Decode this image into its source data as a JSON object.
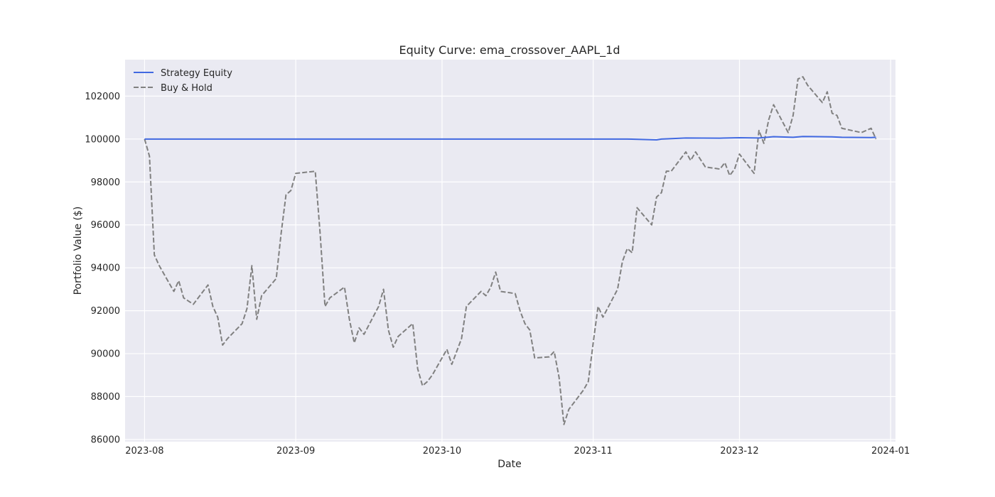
{
  "chart_data": {
    "type": "line",
    "title": "Equity Curve: ema_crossover_AAPL_1d",
    "xlabel": "Date",
    "ylabel": "Portfolio Value ($)",
    "x_ticks": [
      "2023-08",
      "2023-09",
      "2023-10",
      "2023-11",
      "2023-12",
      "2024-01"
    ],
    "y_ticks": [
      "86000",
      "88000",
      "90000",
      "92000",
      "94000",
      "96000",
      "98000",
      "100000",
      "102000"
    ],
    "xlim": [
      "2023-07-28",
      "2024-01-02"
    ],
    "ylim": [
      85900,
      103700
    ],
    "grid": true,
    "legend_position": "top-left",
    "series": [
      {
        "name": "Strategy Equity",
        "color": "#4169e1",
        "style": "solid",
        "points": [
          [
            "2023-08-01",
            100000
          ],
          [
            "2023-11-08",
            100000
          ],
          [
            "2023-11-14",
            99960
          ],
          [
            "2023-11-15",
            100000
          ],
          [
            "2023-11-20",
            100050
          ],
          [
            "2023-11-27",
            100040
          ],
          [
            "2023-12-01",
            100060
          ],
          [
            "2023-12-05",
            100050
          ],
          [
            "2023-12-08",
            100110
          ],
          [
            "2023-12-12",
            100080
          ],
          [
            "2023-12-14",
            100120
          ],
          [
            "2023-12-20",
            100100
          ],
          [
            "2023-12-22",
            100080
          ],
          [
            "2023-12-28",
            100070
          ],
          [
            "2023-12-29",
            100080
          ]
        ]
      },
      {
        "name": "Buy & Hold",
        "color": "#808080",
        "style": "dashed",
        "points": [
          [
            "2023-08-01",
            100000
          ],
          [
            "2023-08-02",
            99200
          ],
          [
            "2023-08-03",
            94600
          ],
          [
            "2023-08-04",
            94100
          ],
          [
            "2023-08-07",
            92900
          ],
          [
            "2023-08-08",
            93400
          ],
          [
            "2023-08-09",
            92600
          ],
          [
            "2023-08-10",
            92450
          ],
          [
            "2023-08-11",
            92300
          ],
          [
            "2023-08-14",
            93200
          ],
          [
            "2023-08-15",
            92200
          ],
          [
            "2023-08-16",
            91700
          ],
          [
            "2023-08-17",
            90400
          ],
          [
            "2023-08-18",
            90700
          ],
          [
            "2023-08-21",
            91400
          ],
          [
            "2023-08-22",
            92100
          ],
          [
            "2023-08-23",
            94100
          ],
          [
            "2023-08-24",
            91600
          ],
          [
            "2023-08-25",
            92700
          ],
          [
            "2023-08-28",
            93500
          ],
          [
            "2023-08-29",
            95600
          ],
          [
            "2023-08-30",
            97400
          ],
          [
            "2023-08-31",
            97600
          ],
          [
            "2023-09-01",
            98400
          ],
          [
            "2023-09-05",
            98500
          ],
          [
            "2023-09-06",
            95600
          ],
          [
            "2023-09-07",
            92200
          ],
          [
            "2023-09-08",
            92600
          ],
          [
            "2023-09-11",
            93100
          ],
          [
            "2023-09-12",
            91600
          ],
          [
            "2023-09-13",
            90500
          ],
          [
            "2023-09-14",
            91200
          ],
          [
            "2023-09-15",
            90900
          ],
          [
            "2023-09-18",
            92200
          ],
          [
            "2023-09-19",
            93000
          ],
          [
            "2023-09-20",
            91100
          ],
          [
            "2023-09-21",
            90300
          ],
          [
            "2023-09-22",
            90800
          ],
          [
            "2023-09-25",
            91400
          ],
          [
            "2023-09-26",
            89300
          ],
          [
            "2023-09-27",
            88500
          ],
          [
            "2023-09-28",
            88700
          ],
          [
            "2023-09-29",
            89000
          ],
          [
            "2023-10-02",
            90200
          ],
          [
            "2023-10-03",
            89500
          ],
          [
            "2023-10-04",
            90100
          ],
          [
            "2023-10-05",
            90700
          ],
          [
            "2023-10-06",
            92200
          ],
          [
            "2023-10-09",
            92900
          ],
          [
            "2023-10-10",
            92700
          ],
          [
            "2023-10-11",
            93100
          ],
          [
            "2023-10-12",
            93800
          ],
          [
            "2023-10-13",
            92900
          ],
          [
            "2023-10-16",
            92800
          ],
          [
            "2023-10-17",
            92000
          ],
          [
            "2023-10-18",
            91400
          ],
          [
            "2023-10-19",
            91100
          ],
          [
            "2023-10-20",
            89800
          ],
          [
            "2023-10-23",
            89850
          ],
          [
            "2023-10-24",
            90100
          ],
          [
            "2023-10-25",
            88900
          ],
          [
            "2023-10-26",
            86700
          ],
          [
            "2023-10-27",
            87400
          ],
          [
            "2023-10-30",
            88300
          ],
          [
            "2023-10-31",
            88700
          ],
          [
            "2023-11-01",
            90500
          ],
          [
            "2023-11-02",
            92200
          ],
          [
            "2023-11-03",
            91700
          ],
          [
            "2023-11-06",
            93000
          ],
          [
            "2023-11-07",
            94300
          ],
          [
            "2023-11-08",
            94900
          ],
          [
            "2023-11-09",
            94700
          ],
          [
            "2023-11-10",
            96800
          ],
          [
            "2023-11-13",
            96000
          ],
          [
            "2023-11-14",
            97300
          ],
          [
            "2023-11-15",
            97500
          ],
          [
            "2023-11-16",
            98500
          ],
          [
            "2023-11-17",
            98500
          ],
          [
            "2023-11-20",
            99400
          ],
          [
            "2023-11-21",
            99000
          ],
          [
            "2023-11-22",
            99400
          ],
          [
            "2023-11-24",
            98700
          ],
          [
            "2023-11-27",
            98600
          ],
          [
            "2023-11-28",
            98900
          ],
          [
            "2023-11-29",
            98300
          ],
          [
            "2023-11-30",
            98600
          ],
          [
            "2023-12-01",
            99300
          ],
          [
            "2023-12-04",
            98400
          ],
          [
            "2023-12-05",
            100400
          ],
          [
            "2023-12-06",
            99800
          ],
          [
            "2023-12-07",
            100900
          ],
          [
            "2023-12-08",
            101600
          ],
          [
            "2023-12-11",
            100300
          ],
          [
            "2023-12-12",
            101100
          ],
          [
            "2023-12-13",
            102800
          ],
          [
            "2023-12-14",
            102900
          ],
          [
            "2023-12-15",
            102500
          ],
          [
            "2023-12-18",
            101700
          ],
          [
            "2023-12-19",
            102200
          ],
          [
            "2023-12-20",
            101200
          ],
          [
            "2023-12-21",
            101100
          ],
          [
            "2023-12-22",
            100500
          ],
          [
            "2023-12-26",
            100300
          ],
          [
            "2023-12-27",
            100400
          ],
          [
            "2023-12-28",
            100500
          ],
          [
            "2023-12-29",
            100000
          ]
        ]
      }
    ]
  },
  "colors": {
    "plot_background": "#eaeaf2",
    "grid": "#ffffff"
  }
}
